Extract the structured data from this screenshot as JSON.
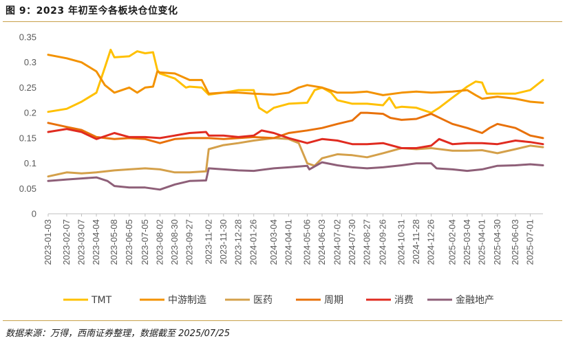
{
  "title": "图 9：2023 年初至今各板块仓位变化",
  "source": "数据来源：万得，西南证券整理，数据截至 2025/07/25",
  "chart_data": {
    "type": "line",
    "title": "图 9：2023 年初至今各板块仓位变化",
    "ylim": [
      0,
      0.35
    ],
    "yticks": [
      "0",
      "0.05",
      "0.1",
      "0.15",
      "0.2",
      "0.25",
      "0.3",
      "0.35"
    ],
    "grid": false,
    "legend_position": "bottom",
    "x_range": [
      "2023-01-03",
      "2025-07-25"
    ],
    "xticks": [
      "2023-01-03",
      "2023-02-07",
      "2023-03-07",
      "2023-04-04",
      "2023-05-08",
      "2023-06-05",
      "2023-07-05",
      "2023-08-02",
      "2023-08-30",
      "2023-09-27",
      "2023-11-02",
      "2023-11-30",
      "2023-12-28",
      "2024-01-26",
      "2024-03-04",
      "2024-04-01",
      "2024-05-06",
      "2024-06-03",
      "2024-07-02",
      "2024-07-30",
      "2024-08-27",
      "2024-09-26",
      "2024-10-31",
      "2024-11-28",
      "2024-12-26",
      "2025-02-04",
      "2025-03-04",
      "2025-04-01",
      "2025-04-30",
      "2025-06-03",
      "2025-07-01"
    ],
    "series": [
      {
        "name": "TMT",
        "color": "#FFC000",
        "points": [
          [
            "2023-01-03",
            0.202
          ],
          [
            "2023-02-07",
            0.208
          ],
          [
            "2023-03-07",
            0.222
          ],
          [
            "2023-04-04",
            0.24
          ],
          [
            "2023-04-20",
            0.29
          ],
          [
            "2023-05-01",
            0.325
          ],
          [
            "2023-05-08",
            0.31
          ],
          [
            "2023-06-05",
            0.312
          ],
          [
            "2023-06-20",
            0.322
          ],
          [
            "2023-07-05",
            0.318
          ],
          [
            "2023-07-20",
            0.32
          ],
          [
            "2023-07-28",
            0.285
          ],
          [
            "2023-08-02",
            0.278
          ],
          [
            "2023-08-30",
            0.268
          ],
          [
            "2023-09-20",
            0.25
          ],
          [
            "2023-09-27",
            0.252
          ],
          [
            "2023-10-20",
            0.25
          ],
          [
            "2023-11-02",
            0.236
          ],
          [
            "2023-11-30",
            0.24
          ],
          [
            "2023-12-28",
            0.245
          ],
          [
            "2024-01-26",
            0.245
          ],
          [
            "2024-02-05",
            0.21
          ],
          [
            "2024-02-20",
            0.2
          ],
          [
            "2024-03-04",
            0.21
          ],
          [
            "2024-04-01",
            0.218
          ],
          [
            "2024-05-06",
            0.22
          ],
          [
            "2024-05-20",
            0.245
          ],
          [
            "2024-06-03",
            0.25
          ],
          [
            "2024-06-20",
            0.24
          ],
          [
            "2024-07-02",
            0.225
          ],
          [
            "2024-07-30",
            0.218
          ],
          [
            "2024-08-27",
            0.218
          ],
          [
            "2024-09-26",
            0.215
          ],
          [
            "2024-10-08",
            0.23
          ],
          [
            "2024-10-20",
            0.21
          ],
          [
            "2024-10-31",
            0.212
          ],
          [
            "2024-11-28",
            0.21
          ],
          [
            "2024-12-26",
            0.2
          ],
          [
            "2025-01-10",
            0.21
          ],
          [
            "2025-02-04",
            0.23
          ],
          [
            "2025-03-04",
            0.252
          ],
          [
            "2025-03-20",
            0.262
          ],
          [
            "2025-04-01",
            0.26
          ],
          [
            "2025-04-10",
            0.238
          ],
          [
            "2025-04-30",
            0.238
          ],
          [
            "2025-06-03",
            0.238
          ],
          [
            "2025-07-01",
            0.245
          ],
          [
            "2025-07-25",
            0.265
          ]
        ]
      },
      {
        "name": "中游制造",
        "color": "#F39200",
        "points": [
          [
            "2023-01-03",
            0.315
          ],
          [
            "2023-02-07",
            0.308
          ],
          [
            "2023-03-07",
            0.3
          ],
          [
            "2023-04-04",
            0.282
          ],
          [
            "2023-04-20",
            0.255
          ],
          [
            "2023-05-08",
            0.24
          ],
          [
            "2023-06-05",
            0.25
          ],
          [
            "2023-06-20",
            0.24
          ],
          [
            "2023-07-05",
            0.25
          ],
          [
            "2023-07-20",
            0.252
          ],
          [
            "2023-07-28",
            0.282
          ],
          [
            "2023-08-02",
            0.28
          ],
          [
            "2023-08-30",
            0.278
          ],
          [
            "2023-09-27",
            0.265
          ],
          [
            "2023-10-20",
            0.265
          ],
          [
            "2023-11-02",
            0.238
          ],
          [
            "2023-11-30",
            0.24
          ],
          [
            "2023-12-28",
            0.24
          ],
          [
            "2024-01-26",
            0.238
          ],
          [
            "2024-03-04",
            0.236
          ],
          [
            "2024-04-01",
            0.24
          ],
          [
            "2024-04-20",
            0.25
          ],
          [
            "2024-05-06",
            0.255
          ],
          [
            "2024-06-03",
            0.25
          ],
          [
            "2024-07-02",
            0.24
          ],
          [
            "2024-07-30",
            0.24
          ],
          [
            "2024-08-27",
            0.242
          ],
          [
            "2024-09-26",
            0.235
          ],
          [
            "2024-10-31",
            0.24
          ],
          [
            "2024-11-28",
            0.242
          ],
          [
            "2024-12-26",
            0.24
          ],
          [
            "2025-02-04",
            0.242
          ],
          [
            "2025-03-04",
            0.245
          ],
          [
            "2025-03-20",
            0.235
          ],
          [
            "2025-04-01",
            0.228
          ],
          [
            "2025-04-30",
            0.232
          ],
          [
            "2025-06-03",
            0.228
          ],
          [
            "2025-07-01",
            0.222
          ],
          [
            "2025-07-25",
            0.22
          ]
        ]
      },
      {
        "name": "医药",
        "color": "#D4A04A",
        "points": [
          [
            "2023-01-03",
            0.074
          ],
          [
            "2023-02-07",
            0.082
          ],
          [
            "2023-03-07",
            0.08
          ],
          [
            "2023-04-04",
            0.082
          ],
          [
            "2023-05-08",
            0.086
          ],
          [
            "2023-06-05",
            0.088
          ],
          [
            "2023-07-05",
            0.09
          ],
          [
            "2023-08-02",
            0.088
          ],
          [
            "2023-08-30",
            0.082
          ],
          [
            "2023-09-27",
            0.082
          ],
          [
            "2023-10-28",
            0.084
          ],
          [
            "2023-11-02",
            0.128
          ],
          [
            "2023-11-30",
            0.136
          ],
          [
            "2023-12-28",
            0.14
          ],
          [
            "2024-01-26",
            0.145
          ],
          [
            "2024-03-04",
            0.15
          ],
          [
            "2024-04-01",
            0.148
          ],
          [
            "2024-04-20",
            0.14
          ],
          [
            "2024-05-06",
            0.1
          ],
          [
            "2024-05-20",
            0.095
          ],
          [
            "2024-06-03",
            0.11
          ],
          [
            "2024-07-02",
            0.118
          ],
          [
            "2024-07-30",
            0.116
          ],
          [
            "2024-08-27",
            0.112
          ],
          [
            "2024-09-26",
            0.12
          ],
          [
            "2024-10-31",
            0.13
          ],
          [
            "2024-11-28",
            0.128
          ],
          [
            "2024-12-26",
            0.13
          ],
          [
            "2025-02-04",
            0.125
          ],
          [
            "2025-03-04",
            0.125
          ],
          [
            "2025-04-01",
            0.126
          ],
          [
            "2025-04-30",
            0.12
          ],
          [
            "2025-06-03",
            0.128
          ],
          [
            "2025-07-01",
            0.135
          ],
          [
            "2025-07-25",
            0.132
          ]
        ]
      },
      {
        "name": "周期",
        "color": "#E8710A",
        "points": [
          [
            "2023-01-03",
            0.18
          ],
          [
            "2023-02-07",
            0.172
          ],
          [
            "2023-03-07",
            0.166
          ],
          [
            "2023-04-04",
            0.152
          ],
          [
            "2023-05-08",
            0.148
          ],
          [
            "2023-06-05",
            0.15
          ],
          [
            "2023-07-05",
            0.148
          ],
          [
            "2023-08-02",
            0.14
          ],
          [
            "2023-08-30",
            0.148
          ],
          [
            "2023-09-27",
            0.15
          ],
          [
            "2023-11-02",
            0.15
          ],
          [
            "2023-11-30",
            0.148
          ],
          [
            "2023-12-28",
            0.15
          ],
          [
            "2024-01-26",
            0.152
          ],
          [
            "2024-03-04",
            0.15
          ],
          [
            "2024-04-01",
            0.16
          ],
          [
            "2024-05-06",
            0.165
          ],
          [
            "2024-06-03",
            0.17
          ],
          [
            "2024-07-02",
            0.178
          ],
          [
            "2024-07-30",
            0.185
          ],
          [
            "2024-08-15",
            0.2
          ],
          [
            "2024-08-27",
            0.2
          ],
          [
            "2024-09-26",
            0.198
          ],
          [
            "2024-10-10",
            0.19
          ],
          [
            "2024-10-31",
            0.186
          ],
          [
            "2024-11-28",
            0.188
          ],
          [
            "2024-12-26",
            0.198
          ],
          [
            "2025-02-04",
            0.178
          ],
          [
            "2025-03-04",
            0.17
          ],
          [
            "2025-04-01",
            0.16
          ],
          [
            "2025-04-15",
            0.17
          ],
          [
            "2025-04-30",
            0.178
          ],
          [
            "2025-06-03",
            0.17
          ],
          [
            "2025-07-01",
            0.155
          ],
          [
            "2025-07-25",
            0.15
          ]
        ]
      },
      {
        "name": "消费",
        "color": "#E02B20",
        "points": [
          [
            "2023-01-03",
            0.162
          ],
          [
            "2023-02-07",
            0.168
          ],
          [
            "2023-03-07",
            0.162
          ],
          [
            "2023-04-04",
            0.148
          ],
          [
            "2023-05-08",
            0.16
          ],
          [
            "2023-06-05",
            0.152
          ],
          [
            "2023-07-05",
            0.152
          ],
          [
            "2023-08-02",
            0.15
          ],
          [
            "2023-08-30",
            0.155
          ],
          [
            "2023-09-27",
            0.16
          ],
          [
            "2023-10-28",
            0.162
          ],
          [
            "2023-11-02",
            0.155
          ],
          [
            "2023-11-30",
            0.155
          ],
          [
            "2023-12-28",
            0.152
          ],
          [
            "2024-01-26",
            0.155
          ],
          [
            "2024-02-10",
            0.165
          ],
          [
            "2024-03-04",
            0.16
          ],
          [
            "2024-04-01",
            0.15
          ],
          [
            "2024-05-06",
            0.14
          ],
          [
            "2024-06-03",
            0.148
          ],
          [
            "2024-07-02",
            0.145
          ],
          [
            "2024-07-30",
            0.138
          ],
          [
            "2024-08-27",
            0.138
          ],
          [
            "2024-09-26",
            0.14
          ],
          [
            "2024-10-31",
            0.13
          ],
          [
            "2024-11-28",
            0.13
          ],
          [
            "2024-12-26",
            0.135
          ],
          [
            "2025-01-10",
            0.148
          ],
          [
            "2025-02-04",
            0.138
          ],
          [
            "2025-03-04",
            0.14
          ],
          [
            "2025-04-01",
            0.14
          ],
          [
            "2025-04-30",
            0.138
          ],
          [
            "2025-06-03",
            0.145
          ],
          [
            "2025-07-01",
            0.142
          ],
          [
            "2025-07-25",
            0.138
          ]
        ]
      },
      {
        "name": "金融地产",
        "color": "#8E5F78",
        "points": [
          [
            "2023-01-03",
            0.065
          ],
          [
            "2023-02-07",
            0.068
          ],
          [
            "2023-03-07",
            0.07
          ],
          [
            "2023-04-04",
            0.072
          ],
          [
            "2023-04-25",
            0.065
          ],
          [
            "2023-05-08",
            0.055
          ],
          [
            "2023-06-05",
            0.052
          ],
          [
            "2023-07-05",
            0.052
          ],
          [
            "2023-08-02",
            0.048
          ],
          [
            "2023-08-30",
            0.058
          ],
          [
            "2023-09-27",
            0.065
          ],
          [
            "2023-10-28",
            0.066
          ],
          [
            "2023-11-02",
            0.09
          ],
          [
            "2023-11-30",
            0.088
          ],
          [
            "2023-12-28",
            0.086
          ],
          [
            "2024-01-26",
            0.085
          ],
          [
            "2024-03-04",
            0.09
          ],
          [
            "2024-04-01",
            0.092
          ],
          [
            "2024-05-06",
            0.095
          ],
          [
            "2024-05-10",
            0.088
          ],
          [
            "2024-06-03",
            0.102
          ],
          [
            "2024-07-02",
            0.096
          ],
          [
            "2024-07-30",
            0.092
          ],
          [
            "2024-08-27",
            0.09
          ],
          [
            "2024-09-26",
            0.092
          ],
          [
            "2024-10-31",
            0.096
          ],
          [
            "2024-11-28",
            0.1
          ],
          [
            "2024-12-26",
            0.1
          ],
          [
            "2025-01-05",
            0.09
          ],
          [
            "2025-02-04",
            0.088
          ],
          [
            "2025-03-04",
            0.085
          ],
          [
            "2025-04-01",
            0.088
          ],
          [
            "2025-04-30",
            0.095
          ],
          [
            "2025-06-03",
            0.096
          ],
          [
            "2025-07-01",
            0.098
          ],
          [
            "2025-07-25",
            0.096
          ]
        ]
      }
    ]
  }
}
